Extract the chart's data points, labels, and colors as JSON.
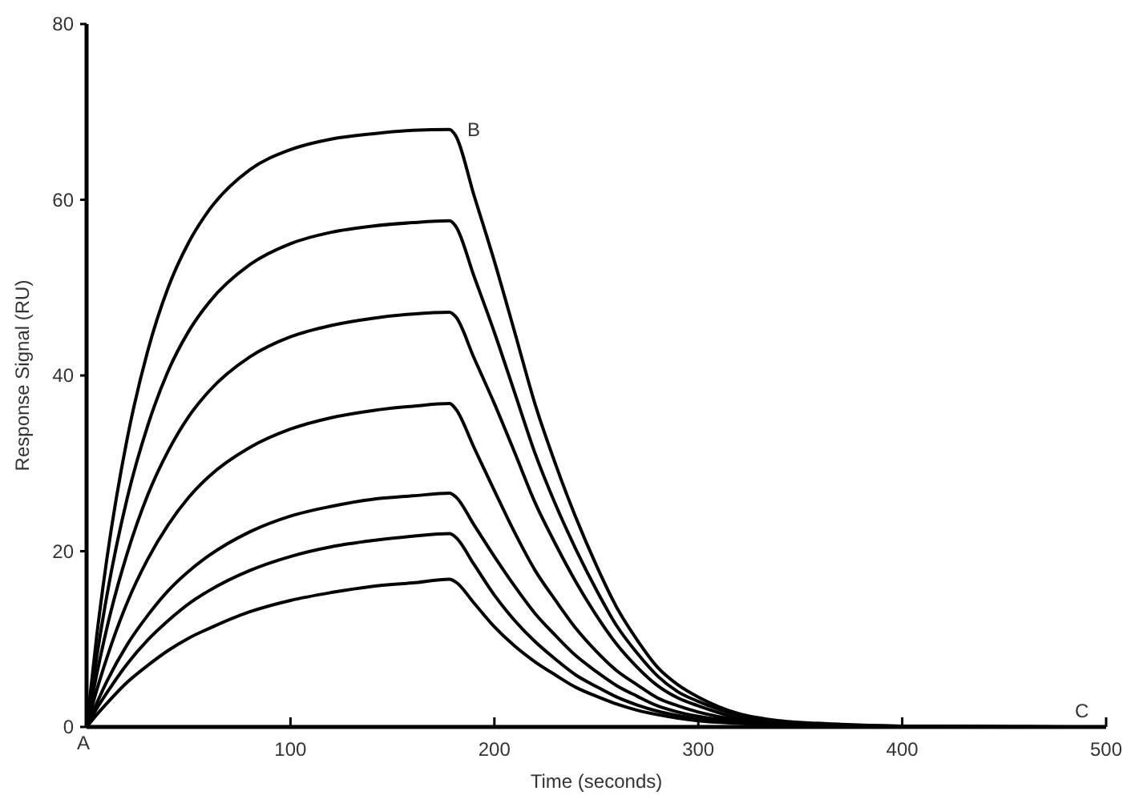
{
  "chart_data": {
    "type": "line",
    "xlabel": "Time (seconds)",
    "ylabel": "Response Signal (RU)",
    "xlim": [
      0,
      500
    ],
    "ylim": [
      0,
      80
    ],
    "xticks": [
      100,
      200,
      300,
      400,
      500
    ],
    "yticks": [
      0,
      20,
      40,
      60,
      80
    ],
    "grid": false,
    "marker": "none",
    "line_style": "solid",
    "series": [
      {
        "color": "#000000",
        "x": [
          0,
          5,
          10,
          20,
          30,
          40,
          50,
          60,
          80,
          100,
          120,
          140,
          160,
          178,
          181,
          190,
          200,
          210,
          220,
          230,
          240,
          250,
          260,
          270,
          280,
          290,
          300,
          320,
          340,
          370,
          400,
          490
        ],
        "values": [
          0,
          10.4,
          19.2,
          32.9,
          42.8,
          50.0,
          55.1,
          58.8,
          63.4,
          65.7,
          66.9,
          67.5,
          67.9,
          68.0,
          67.3,
          60.5,
          53.0,
          44.9,
          36.7,
          29.9,
          23.8,
          18.4,
          13.6,
          9.9,
          6.8,
          4.8,
          3.4,
          1.5,
          0.7,
          0.3,
          0.1,
          0
        ]
      },
      {
        "color": "#000000",
        "x": [
          0,
          5,
          10,
          20,
          30,
          40,
          50,
          60,
          80,
          100,
          120,
          140,
          160,
          178,
          181,
          190,
          200,
          210,
          220,
          230,
          240,
          250,
          260,
          270,
          280,
          290,
          300,
          320,
          340,
          370,
          400,
          475
        ],
        "values": [
          0,
          8.0,
          15.0,
          26.1,
          34.3,
          40.5,
          45.0,
          48.3,
          52.6,
          55.0,
          56.3,
          57.0,
          57.4,
          57.6,
          57.0,
          51.3,
          44.9,
          38.0,
          31.1,
          25.3,
          20.2,
          15.6,
          11.5,
          8.4,
          5.8,
          4.0,
          2.9,
          1.3,
          0.6,
          0.2,
          0.1,
          0
        ]
      },
      {
        "color": "#000000",
        "x": [
          0,
          5,
          10,
          20,
          30,
          40,
          50,
          60,
          80,
          100,
          120,
          140,
          160,
          178,
          181,
          190,
          200,
          210,
          220,
          230,
          240,
          250,
          260,
          270,
          280,
          290,
          300,
          320,
          340,
          370,
          400,
          460
        ],
        "values": [
          0,
          6.0,
          11.3,
          19.8,
          26.4,
          31.4,
          35.3,
          38.2,
          42.1,
          44.4,
          45.7,
          46.5,
          47.0,
          47.2,
          46.7,
          42.0,
          36.8,
          31.2,
          25.5,
          20.8,
          16.5,
          12.7,
          9.4,
          6.8,
          4.7,
          3.3,
          2.4,
          1.0,
          0.5,
          0.2,
          0.1,
          0
        ]
      },
      {
        "color": "#000000",
        "x": [
          0,
          5,
          10,
          20,
          30,
          40,
          50,
          60,
          80,
          100,
          120,
          140,
          160,
          178,
          181,
          190,
          200,
          210,
          220,
          230,
          240,
          250,
          260,
          270,
          280,
          290,
          300,
          320,
          340,
          370,
          400,
          445
        ],
        "values": [
          0,
          4.2,
          7.9,
          14.2,
          19.1,
          23.0,
          26.1,
          28.5,
          31.8,
          33.9,
          35.2,
          36.0,
          36.5,
          36.8,
          36.2,
          31.8,
          26.9,
          22.1,
          17.8,
          14.4,
          11.2,
          8.6,
          6.4,
          4.8,
          3.3,
          2.4,
          1.7,
          0.8,
          0.4,
          0.1,
          0.1,
          0
        ]
      },
      {
        "color": "#000000",
        "x": [
          0,
          5,
          10,
          20,
          30,
          40,
          50,
          60,
          80,
          100,
          120,
          140,
          160,
          178,
          181,
          190,
          200,
          210,
          220,
          230,
          240,
          250,
          260,
          270,
          280,
          290,
          300,
          320,
          340,
          370,
          430
        ],
        "values": [
          0,
          2.7,
          5.2,
          9.4,
          12.7,
          15.5,
          17.7,
          19.5,
          22.2,
          24.0,
          25.1,
          25.9,
          26.3,
          26.6,
          26.2,
          23.0,
          19.4,
          16.0,
          12.9,
          10.4,
          8.1,
          6.3,
          4.7,
          3.5,
          2.4,
          1.7,
          1.2,
          0.6,
          0.3,
          0.1,
          0
        ]
      },
      {
        "color": "#000000",
        "x": [
          0,
          5,
          10,
          20,
          30,
          40,
          50,
          60,
          80,
          100,
          120,
          140,
          160,
          178,
          181,
          190,
          200,
          210,
          220,
          230,
          240,
          250,
          260,
          270,
          280,
          290,
          300,
          320,
          340,
          370,
          415
        ],
        "values": [
          0,
          2.1,
          3.9,
          7.2,
          9.9,
          12.1,
          14.0,
          15.5,
          17.8,
          19.4,
          20.5,
          21.2,
          21.7,
          22.0,
          21.6,
          18.5,
          15.0,
          12.1,
          9.7,
          7.7,
          5.9,
          4.6,
          3.4,
          2.5,
          1.8,
          1.3,
          0.9,
          0.5,
          0.2,
          0.1,
          0
        ]
      },
      {
        "color": "#000000",
        "x": [
          0,
          5,
          10,
          20,
          30,
          40,
          50,
          60,
          80,
          100,
          120,
          140,
          160,
          178,
          181,
          190,
          200,
          210,
          220,
          230,
          240,
          250,
          260,
          270,
          280,
          290,
          300,
          320,
          340,
          400
        ],
        "values": [
          0,
          1.4,
          2.7,
          5.1,
          7.0,
          8.7,
          10.1,
          11.2,
          13.1,
          14.4,
          15.3,
          16.0,
          16.4,
          16.8,
          16.5,
          14.1,
          11.4,
          9.2,
          7.4,
          5.9,
          4.5,
          3.5,
          2.6,
          1.9,
          1.4,
          1.0,
          0.7,
          0.4,
          0.2,
          0
        ]
      }
    ],
    "annotations": [
      {
        "text": "A",
        "x": 0,
        "y": 0
      },
      {
        "text": "B",
        "x": 182,
        "y": 68
      },
      {
        "text": "C",
        "x": 480,
        "y": 0
      }
    ]
  }
}
